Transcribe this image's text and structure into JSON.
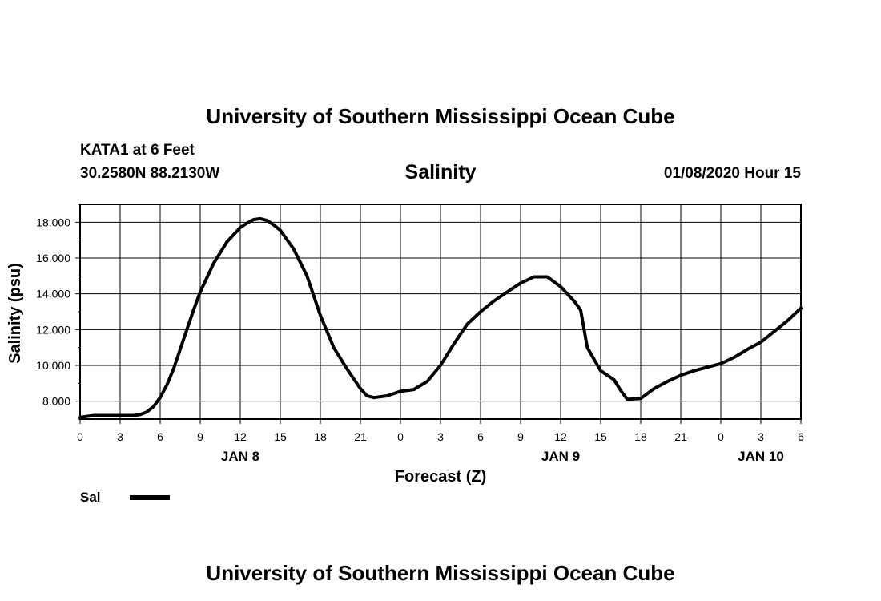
{
  "header": {
    "title_top": "University of Southern Mississippi Ocean Cube",
    "station": "KATA1 at 6 Feet",
    "coords": "30.2580N 88.2130W",
    "datetime": "01/08/2020 Hour 15",
    "title_bottom": "University of Southern Mississippi Ocean Cube"
  },
  "colors": {
    "line": "#000000",
    "grid": "#000000",
    "background": "#ffffff"
  },
  "chart_data": {
    "type": "line",
    "title": "Salinity",
    "xlabel": "Forecast (Z)",
    "ylabel": "Salinity (psu)",
    "xlim": [
      0,
      54
    ],
    "ylim": [
      7.0,
      19.0
    ],
    "grid": true,
    "x_ticks": [
      0,
      3,
      6,
      9,
      12,
      15,
      18,
      21,
      24,
      27,
      30,
      33,
      36,
      39,
      42,
      45,
      48,
      51,
      54
    ],
    "x_tick_labels": [
      "0",
      "3",
      "6",
      "9",
      "12",
      "15",
      "18",
      "21",
      "0",
      "3",
      "6",
      "9",
      "12",
      "15",
      "18",
      "21",
      "0",
      "3",
      "6"
    ],
    "y_ticks": [
      8,
      10,
      12,
      14,
      16,
      18
    ],
    "y_tick_labels": [
      "8.000",
      "10.000",
      "12.000",
      "14.000",
      "16.000",
      "18.000"
    ],
    "day_labels": [
      {
        "x": 12,
        "label": "JAN 8"
      },
      {
        "x": 36,
        "label": "JAN 9"
      },
      {
        "x": 51,
        "label": "JAN 10"
      }
    ],
    "legend": {
      "label": "Sal",
      "placement": "bottom-left"
    },
    "series": [
      {
        "name": "Sal",
        "x": [
          0,
          1,
          2,
          3,
          4,
          4.5,
          5,
          5.5,
          6,
          6.5,
          7,
          7.5,
          8,
          8.5,
          9,
          10,
          11,
          12,
          12.5,
          13,
          13.5,
          14,
          14.5,
          15,
          16,
          17,
          18,
          19,
          20,
          21,
          21.5,
          22,
          23,
          24,
          25,
          26,
          27,
          28,
          29,
          30,
          31,
          32,
          33,
          34,
          35,
          36,
          36.5,
          37,
          37.5,
          38,
          39,
          40,
          40.5,
          41,
          42,
          43,
          44,
          45,
          46,
          47,
          48,
          49,
          50,
          51,
          52,
          53,
          54
        ],
        "values": [
          7.1,
          7.2,
          7.2,
          7.2,
          7.2,
          7.25,
          7.4,
          7.7,
          8.2,
          8.9,
          9.8,
          10.9,
          12.0,
          13.1,
          14.1,
          15.7,
          16.9,
          17.7,
          17.95,
          18.15,
          18.2,
          18.1,
          17.85,
          17.55,
          16.5,
          15.0,
          12.8,
          11.0,
          9.8,
          8.7,
          8.3,
          8.2,
          8.3,
          8.55,
          8.65,
          9.1,
          10.0,
          11.2,
          12.3,
          13.0,
          13.6,
          14.1,
          14.6,
          14.95,
          14.95,
          14.4,
          14.0,
          13.6,
          13.1,
          11.0,
          9.7,
          9.2,
          8.6,
          8.1,
          8.15,
          8.7,
          9.1,
          9.45,
          9.7,
          9.9,
          10.1,
          10.45,
          10.9,
          11.3,
          11.9,
          12.5,
          13.2
        ]
      }
    ]
  }
}
